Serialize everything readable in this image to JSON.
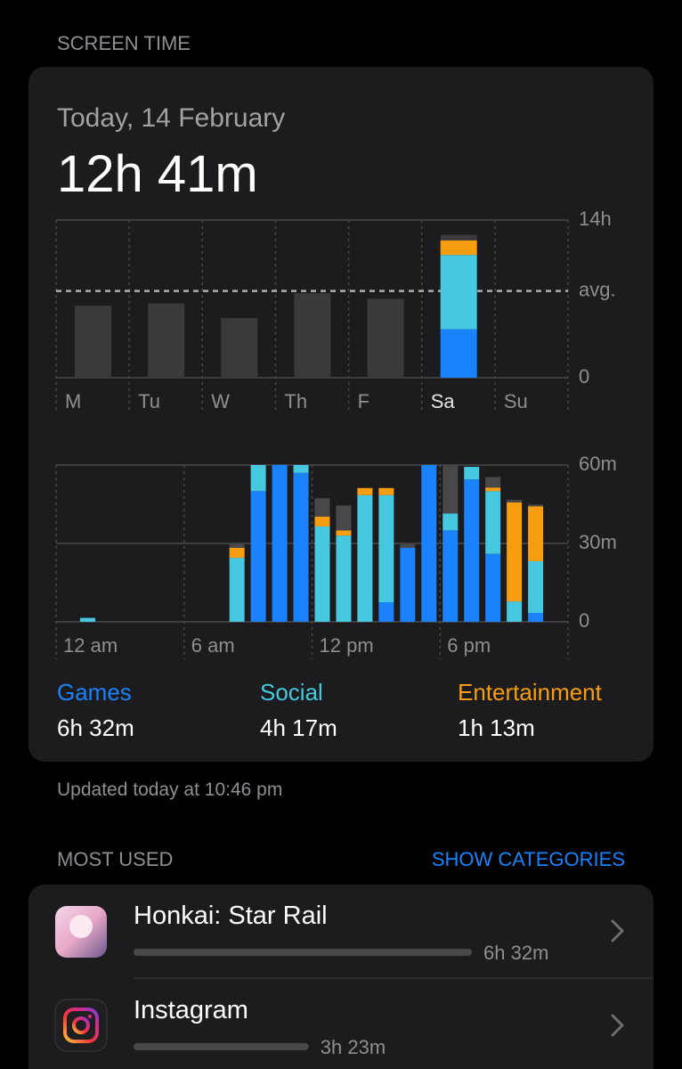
{
  "header": "SCREEN TIME",
  "date": "Today, 14 February",
  "total": "12h 41m",
  "chart_data": [
    {
      "type": "bar",
      "stacked": true,
      "categories": [
        "M",
        "Tu",
        "W",
        "Th",
        "F",
        "Sa",
        "Su"
      ],
      "selected_index": 5,
      "series": [
        {
          "color": "#1a82fb",
          "values": [
            null,
            null,
            null,
            null,
            null,
            4.3,
            null
          ]
        },
        {
          "color": "#46c8e0",
          "values": [
            null,
            null,
            null,
            null,
            null,
            6.6,
            null
          ]
        },
        {
          "color": "#f79d10",
          "values": [
            null,
            null,
            null,
            null,
            null,
            1.3,
            null
          ]
        },
        {
          "color": "#3a3a3c",
          "values": [
            6.4,
            6.6,
            5.3,
            7.5,
            7.0,
            0.5,
            null
          ]
        }
      ],
      "ylim": [
        0,
        14
      ],
      "yticks": [
        0,
        {
          "value": 14,
          "label": "14h"
        }
      ],
      "average": {
        "value": 7.7,
        "label": "avg."
      }
    },
    {
      "type": "bar",
      "stacked": true,
      "categories": [
        "12 am",
        null,
        null,
        null,
        null,
        null,
        "6 am",
        null,
        null,
        null,
        null,
        null,
        "12 pm",
        null,
        null,
        null,
        null,
        null,
        "6 pm",
        null,
        null,
        null,
        null,
        null
      ],
      "series": [
        {
          "name": "Games",
          "color": "#1a82fb",
          "values": [
            null,
            null,
            null,
            null,
            null,
            null,
            null,
            null,
            null,
            50,
            60,
            57,
            null,
            null,
            null,
            7.5,
            28.3,
            60,
            35,
            54.5,
            26,
            null,
            3.4,
            null
          ]
        },
        {
          "name": "Social",
          "color": "#46c8e0",
          "values": [
            null,
            1.5,
            null,
            null,
            null,
            null,
            null,
            null,
            24.5,
            10,
            null,
            3,
            36.5,
            33,
            48.5,
            41,
            null,
            null,
            6.5,
            4.8,
            24,
            7.8,
            19.8,
            null
          ]
        },
        {
          "name": "Entertainment",
          "color": "#f79d10",
          "values": [
            null,
            null,
            null,
            null,
            null,
            null,
            null,
            null,
            3.8,
            null,
            null,
            null,
            3.8,
            2,
            2.7,
            2.7,
            null,
            null,
            null,
            null,
            1.4,
            37.9,
            21,
            null
          ]
        },
        {
          "color": "#48484a",
          "values": [
            null,
            null,
            null,
            null,
            null,
            null,
            null,
            null,
            1.4,
            null,
            null,
            null,
            7,
            9.5,
            null,
            null,
            1.4,
            null,
            18.4,
            null,
            4,
            1,
            0.7,
            null
          ]
        }
      ],
      "ylim": [
        0,
        60
      ],
      "yticks": [
        0,
        {
          "value": 30,
          "label": "30m"
        },
        {
          "value": 60,
          "label": "60m"
        }
      ]
    }
  ],
  "category_totals": [
    "6h 32m",
    "4h 17m",
    "1h 13m"
  ],
  "updated": "Updated today at 10:46 pm",
  "most_used": {
    "title": "MOST USED",
    "action": "SHOW CATEGORIES",
    "apps": [
      {
        "name": "Honkai: Star Rail",
        "time": "6h 32m",
        "minutes": 392
      },
      {
        "name": "Instagram",
        "time": "3h 23m",
        "minutes": 203
      }
    ]
  }
}
